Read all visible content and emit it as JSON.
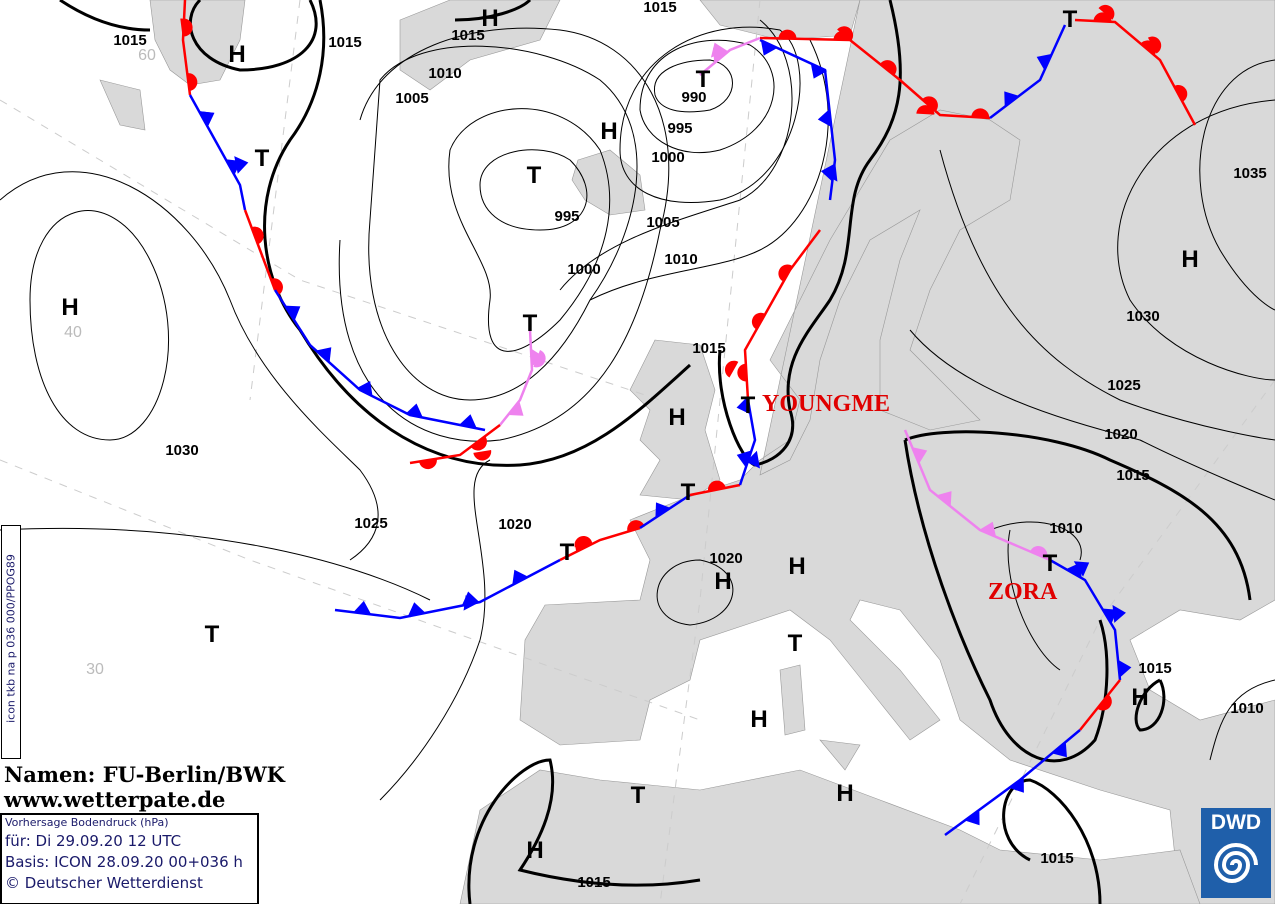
{
  "map": {
    "pressure_labels": [
      "1015",
      "1015",
      "1015",
      "1015",
      "1010",
      "1005",
      "990",
      "995",
      "1000",
      "995",
      "1005",
      "1000",
      "1010",
      "1015",
      "1030",
      "1025",
      "1020",
      "1020",
      "1035",
      "1030",
      "1025",
      "1020",
      "1015",
      "1010",
      "1015",
      "1010",
      "1015",
      "1015"
    ],
    "grid_labels": [
      "60",
      "40",
      "30"
    ],
    "high_labels": [
      "H",
      "H",
      "H",
      "H",
      "H",
      "H",
      "H",
      "H",
      "H",
      "H",
      "H",
      "H"
    ],
    "low_labels": [
      "T",
      "T",
      "T",
      "T",
      "T",
      "T",
      "T",
      "T",
      "T",
      "T",
      "T",
      "T"
    ],
    "storm_names": [
      "YOUNGME",
      "ZORA"
    ],
    "colors": {
      "land": "#d9d9d9",
      "sea": "#ffffff",
      "warm_front": "#ff0000",
      "cold_front": "#0000ff",
      "occlusion": "#ee82ee",
      "storm_name": "#e00000",
      "logo": "#1f5faa"
    }
  },
  "credit": {
    "names": "Namen: FU-Berlin/BWK",
    "website": "www.wetterpate.de"
  },
  "info": {
    "title": "Vorhersage Bodendruck (hPa)",
    "valid": "für:  Di 29.09.20  12 UTC",
    "basis": "Basis: ICON  28.09.20 00+036 h",
    "copyright": "© Deutscher Wetterdienst"
  },
  "side_code": "icon tkb na p 036 000/PPOG89",
  "logo": {
    "text": "DWD",
    "icon": "dwd-swirl-logo"
  }
}
